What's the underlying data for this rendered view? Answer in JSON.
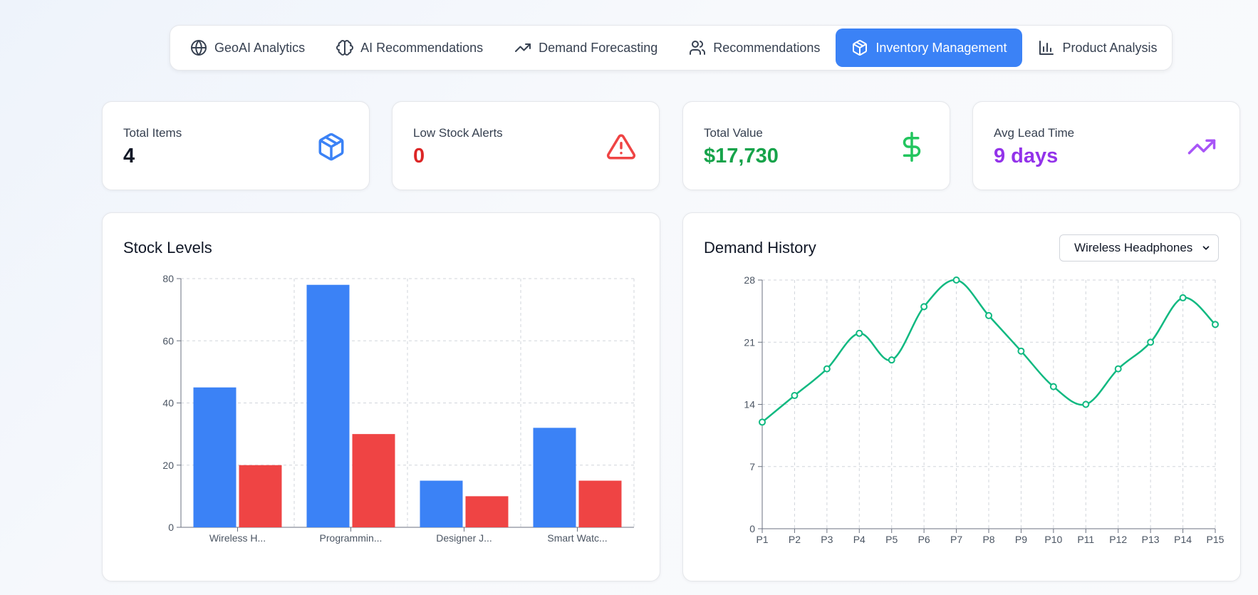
{
  "nav": {
    "tabs": [
      {
        "label": "GeoAI Analytics",
        "icon": "globe-icon"
      },
      {
        "label": "AI Recommendations",
        "icon": "brain-icon"
      },
      {
        "label": "Demand Forecasting",
        "icon": "trending-up-icon"
      },
      {
        "label": "Recommendations",
        "icon": "users-icon"
      },
      {
        "label": "Inventory Management",
        "icon": "package-icon",
        "active": true
      },
      {
        "label": "Product Analysis",
        "icon": "bar-chart-icon"
      }
    ]
  },
  "stats": {
    "total_items": {
      "label": "Total Items",
      "value": "4",
      "color": "#111827",
      "icon_color": "#3b82f6"
    },
    "low_stock": {
      "label": "Low Stock Alerts",
      "value": "0",
      "color": "#dc2626",
      "icon_color": "#ef4444"
    },
    "total_value": {
      "label": "Total Value",
      "value": "$17,730",
      "color": "#16a34a",
      "icon_color": "#22c55e"
    },
    "lead_time": {
      "label": "Avg Lead Time",
      "value": "9 days",
      "color": "#9333ea",
      "icon_color": "#a855f7"
    }
  },
  "stock_panel": {
    "title": "Stock Levels"
  },
  "demand_panel": {
    "title": "Demand History",
    "selected_product": "Wireless Headphones"
  },
  "chart_data": [
    {
      "type": "bar",
      "title": "Stock Levels",
      "categories": [
        "Wireless H...",
        "Programmin...",
        "Designer J...",
        "Smart Watc..."
      ],
      "series": [
        {
          "values": [
            45,
            78,
            15,
            32
          ],
          "color": "#3b82f6"
        },
        {
          "values": [
            20,
            30,
            10,
            15
          ],
          "color": "#ef4444"
        }
      ],
      "ylim": [
        0,
        80
      ],
      "yticks": [
        0,
        20,
        40,
        60,
        80
      ],
      "grid": true
    },
    {
      "type": "line",
      "title": "Demand History",
      "x": [
        "P1",
        "P2",
        "P3",
        "P4",
        "P5",
        "P6",
        "P7",
        "P8",
        "P9",
        "P10",
        "P11",
        "P12",
        "P13",
        "P14",
        "P15"
      ],
      "series": [
        {
          "values": [
            12,
            15,
            18,
            22,
            19,
            25,
            28,
            24,
            20,
            16,
            14,
            18,
            21,
            26,
            23
          ],
          "color": "#10b981"
        }
      ],
      "ylim": [
        0,
        28
      ],
      "yticks": [
        0,
        7,
        14,
        21,
        28
      ],
      "grid": true
    }
  ]
}
